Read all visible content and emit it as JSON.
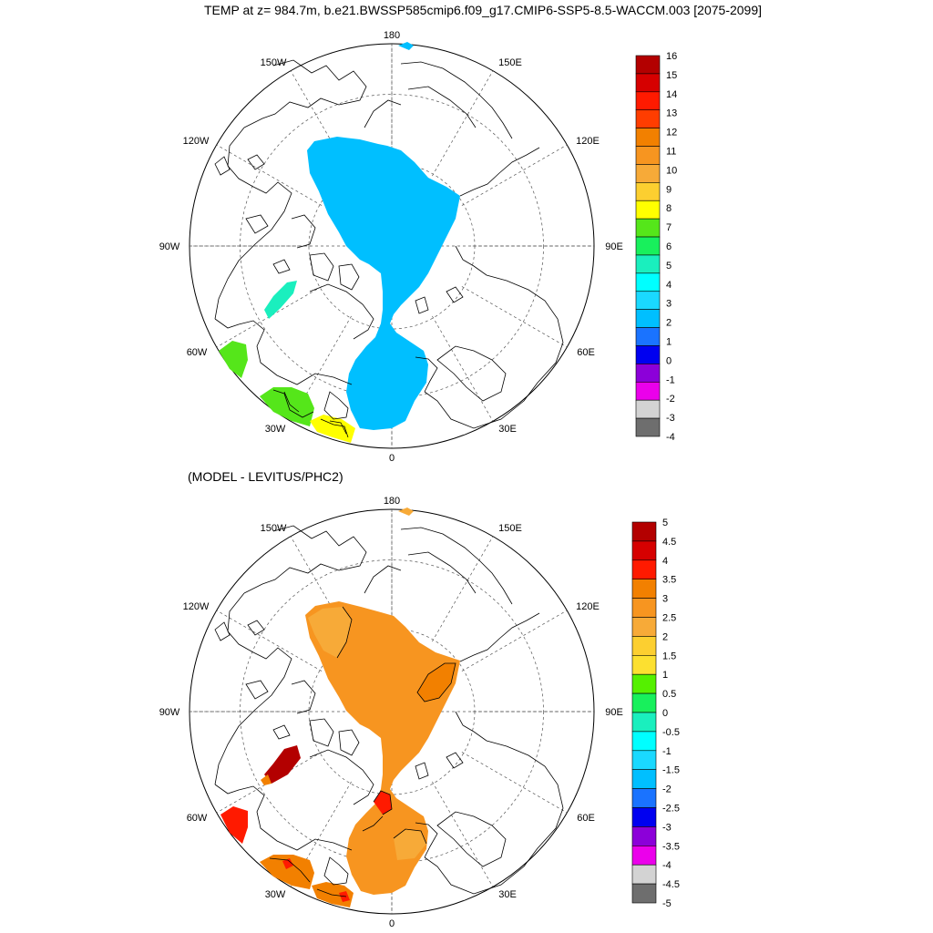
{
  "title": "TEMP at z= 984.7m, b.e21.BWSSP585cmip6.f09_g17.CMIP6-SSP5-8.5-WACCM.003 [2075-2099]",
  "subtitle": "(MODEL - LEVITUS/PHC2)",
  "lon_labels": [
    "180",
    "150E",
    "120E",
    "90E",
    "60E",
    "30E",
    "0",
    "30W",
    "60W",
    "90W",
    "120W",
    "150W"
  ],
  "colorbar_top": {
    "labels": [
      "16",
      "15",
      "14",
      "13",
      "12",
      "11",
      "10",
      "9",
      "8",
      "7",
      "6",
      "5",
      "4",
      "3",
      "2",
      "1",
      "0",
      "-1",
      "-2",
      "-3",
      "-4"
    ],
    "colors": [
      "#b30000",
      "#d60000",
      "#ff1a00",
      "#ff3d00",
      "#f28000",
      "#f79520",
      "#f7aa38",
      "#fccf30",
      "#ffff00",
      "#55e61a",
      "#18f05c",
      "#1aefbe",
      "#00ffff",
      "#1ad9ff",
      "#00bfff",
      "#1a73ff",
      "#0000f0",
      "#8c00d9",
      "#eb00eb",
      "#d3d3d3",
      "#6e6e6e"
    ]
  },
  "colorbar_bottom": {
    "labels": [
      "5",
      "4.5",
      "4",
      "3.5",
      "3",
      "2.5",
      "2",
      "1.5",
      "1",
      "0.5",
      "0",
      "-0.5",
      "-1",
      "-1.5",
      "-2",
      "-2.5",
      "-3",
      "-3.5",
      "-4",
      "-4.5",
      "-5"
    ],
    "colors": [
      "#b30000",
      "#d60000",
      "#ff1a00",
      "#f28000",
      "#f79520",
      "#f7aa38",
      "#fccf30",
      "#fce030",
      "#55f000",
      "#18f05c",
      "#1aefbe",
      "#00ffff",
      "#1ad9ff",
      "#00bfff",
      "#1a73ff",
      "#0000f0",
      "#8c00d9",
      "#eb00eb",
      "#d3d3d3",
      "#6e6e6e"
    ]
  },
  "colors": {
    "top_basin": "#00bfff",
    "top_warm_green": "#55e61a",
    "top_warm_yellow": "#ffff00",
    "top_baffin": "#1aefbe",
    "bottom_basin": "#f79520",
    "bottom_hot": "#ff1a00",
    "bottom_dark": "#b30000",
    "bottom_light": "#f7aa38"
  }
}
